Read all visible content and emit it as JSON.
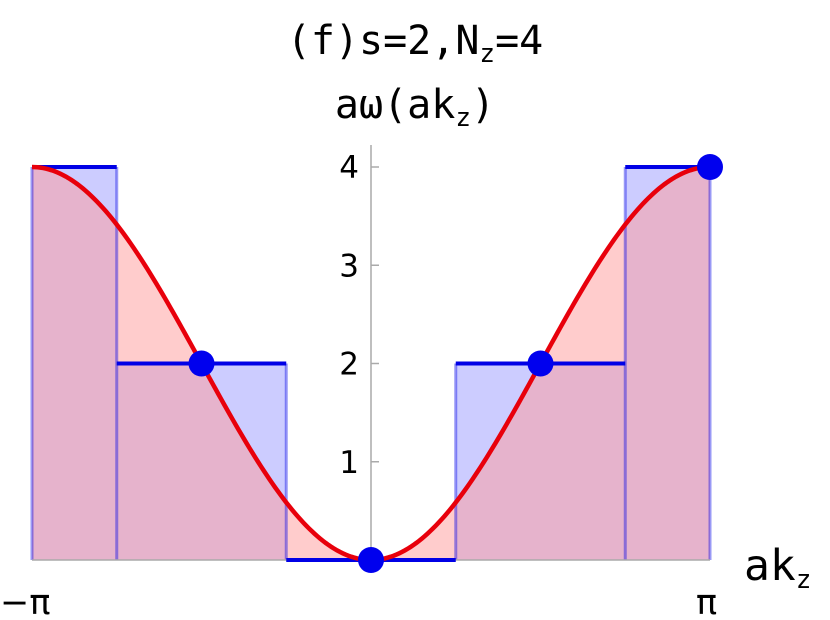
{
  "title": {
    "line1_prefix": "(f)s=2,N",
    "line1_sub": "z",
    "line1_suffix": "=4",
    "line2_prefix": "aω(ak",
    "line2_sub": "z",
    "line2_suffix": ")"
  },
  "x_axis": {
    "label_prefix": "ak",
    "label_sub": "z",
    "tick_left": "−π",
    "tick_right": "π"
  },
  "chart_data": {
    "type": "area",
    "xlabel": "ak_z",
    "xlim": [
      -3.14159,
      3.14159
    ],
    "ylim": [
      0,
      4.2
    ],
    "y_ticks": [
      1,
      2,
      3,
      4
    ],
    "x_ticks": [
      "−π",
      "π"
    ],
    "curve": {
      "formula": "2*(1-cos(x))",
      "color": "#e8000b"
    },
    "steps": [
      {
        "x0": -3.14159,
        "x1": -2.35619,
        "value": 4
      },
      {
        "x0": -2.35619,
        "x1": -0.7854,
        "value": 2
      },
      {
        "x0": -0.7854,
        "x1": 0.7854,
        "value": 0
      },
      {
        "x0": 0.7854,
        "x1": 2.35619,
        "value": 2
      },
      {
        "x0": 2.35619,
        "x1": 3.14159,
        "value": 4
      }
    ],
    "points": [
      {
        "x": -1.5708,
        "y": 2
      },
      {
        "x": 0,
        "y": 0
      },
      {
        "x": 1.5708,
        "y": 2
      },
      {
        "x": 3.14159,
        "y": 4
      }
    ],
    "colors": {
      "steps": "#0000e6",
      "curve": "#e8000b",
      "curve_fill": "#ff9999",
      "step_fill": "#8080ff",
      "points": "#0000ee"
    },
    "grid": false
  }
}
